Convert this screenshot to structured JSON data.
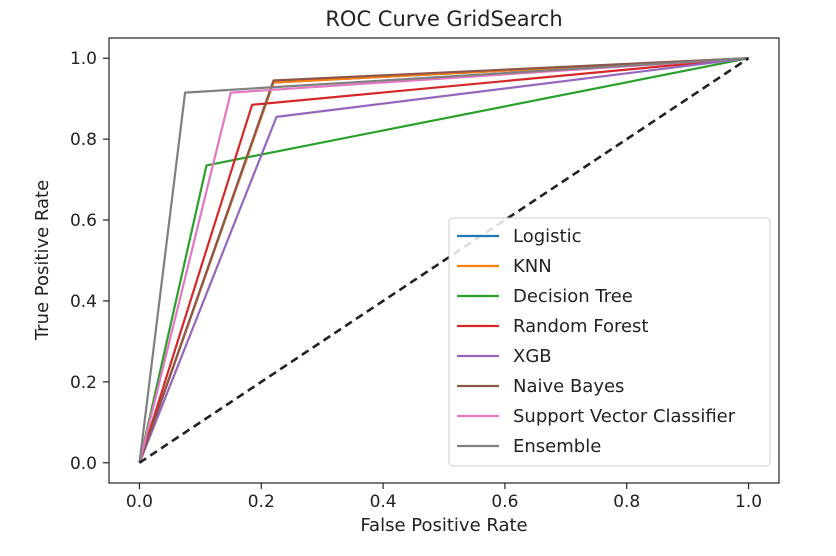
{
  "chart_data": {
    "type": "line",
    "title": "ROC Curve GridSearch",
    "xlabel": "False Positive Rate",
    "ylabel": "True Positive Rate",
    "xlim": [
      -0.05,
      1.05
    ],
    "ylim": [
      -0.05,
      1.05
    ],
    "xticks": [
      "0.0",
      "0.2",
      "0.4",
      "0.6",
      "0.8",
      "1.0"
    ],
    "yticks": [
      "0.0",
      "0.2",
      "0.4",
      "0.6",
      "0.8",
      "1.0"
    ],
    "grid": false,
    "legend_position": "lower right",
    "series": [
      {
        "name": "Logistic",
        "color": "#1f77b4",
        "x": [
          0,
          0.22,
          1
        ],
        "y": [
          0,
          0.94,
          1
        ]
      },
      {
        "name": "KNN",
        "color": "#ff7f0e",
        "x": [
          0,
          0.22,
          1
        ],
        "y": [
          0,
          0.94,
          1
        ]
      },
      {
        "name": "Decision Tree",
        "color": "#2ca02c",
        "x": [
          0,
          0.11,
          1
        ],
        "y": [
          0,
          0.735,
          1
        ]
      },
      {
        "name": "Random Forest",
        "color": "#d62728",
        "x": [
          0,
          0.185,
          1
        ],
        "y": [
          0,
          0.885,
          1
        ]
      },
      {
        "name": "XGB",
        "color": "#9467bd",
        "x": [
          0,
          0.225,
          1
        ],
        "y": [
          0,
          0.855,
          1
        ]
      },
      {
        "name": "Naive Bayes",
        "color": "#8c564b",
        "x": [
          0,
          0.22,
          1
        ],
        "y": [
          0,
          0.945,
          1
        ]
      },
      {
        "name": "Support Vector Classifier",
        "color": "#e377c2",
        "x": [
          0,
          0.15,
          1
        ],
        "y": [
          0,
          0.915,
          1
        ]
      },
      {
        "name": "Ensemble",
        "color": "#7f7f7f",
        "x": [
          0,
          0.075,
          1
        ],
        "y": [
          0,
          0.915,
          1
        ]
      }
    ],
    "reference_line": {
      "x": [
        0,
        1
      ],
      "y": [
        0,
        1
      ],
      "color": "#222222",
      "style": "dashed"
    }
  }
}
